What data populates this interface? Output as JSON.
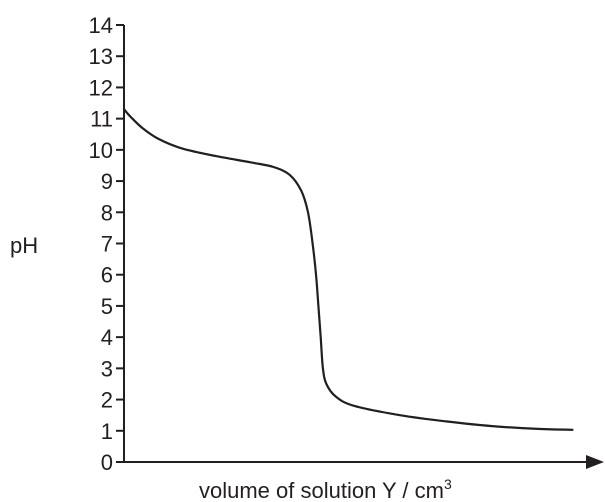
{
  "chart_data": {
    "type": "line",
    "title": "",
    "xlabel": "volume of solution Y / cm",
    "xlabel_superscript": "3",
    "ylabel": "pH",
    "ylim": [
      0,
      14
    ],
    "y_ticks": [
      "0",
      "1",
      "2",
      "3",
      "4",
      "5",
      "6",
      "7",
      "8",
      "9",
      "10",
      "11",
      "12",
      "13",
      "14"
    ],
    "x_ticks": [],
    "grid": false,
    "legend": "none",
    "color": "#231f20",
    "series": [
      {
        "points": [
          [
            0.0,
            11.3
          ],
          [
            0.3,
            11.05
          ],
          [
            0.8,
            10.7
          ],
          [
            1.5,
            10.35
          ],
          [
            2.5,
            10.05
          ],
          [
            4.0,
            9.8
          ],
          [
            5.5,
            9.6
          ],
          [
            6.5,
            9.45
          ],
          [
            7.2,
            9.2
          ],
          [
            7.7,
            8.7
          ],
          [
            8.0,
            8.0
          ],
          [
            8.2,
            7.0
          ],
          [
            8.35,
            6.0
          ],
          [
            8.45,
            5.0
          ],
          [
            8.55,
            4.0
          ],
          [
            8.65,
            3.0
          ],
          [
            8.8,
            2.5
          ],
          [
            9.2,
            2.1
          ],
          [
            10.0,
            1.8
          ],
          [
            12.0,
            1.5
          ],
          [
            14.0,
            1.3
          ],
          [
            16.0,
            1.15
          ],
          [
            18.0,
            1.06
          ],
          [
            19.5,
            1.03
          ]
        ]
      }
    ],
    "xlim": [
      0,
      20
    ]
  }
}
